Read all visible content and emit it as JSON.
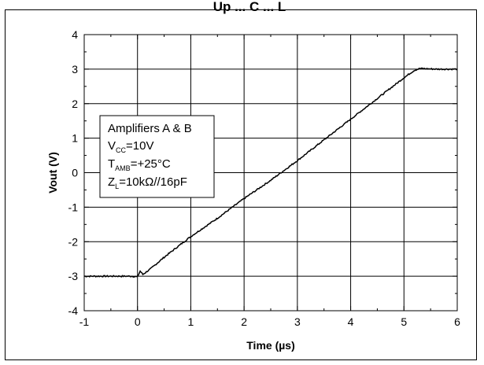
{
  "title_partial": "Up ... C ... L",
  "chart_data": {
    "type": "line",
    "xlabel": "Time (µs)",
    "ylabel": "Vout (V)",
    "xlim": [
      -1,
      6
    ],
    "ylim": [
      -4,
      4
    ],
    "xticks": [
      -1,
      0,
      1,
      2,
      3,
      4,
      5,
      6
    ],
    "yticks": [
      -4,
      -3,
      -2,
      -1,
      0,
      1,
      2,
      3,
      4
    ],
    "grid": true,
    "series": [
      {
        "points": [
          [
            -1.0,
            -3.0
          ],
          [
            -0.5,
            -3.0
          ],
          [
            -0.1,
            -3.0
          ],
          [
            0.0,
            -3.02
          ],
          [
            0.05,
            -2.85
          ],
          [
            0.1,
            -2.95
          ],
          [
            0.25,
            -2.78
          ],
          [
            0.5,
            -2.45
          ],
          [
            1.0,
            -1.85
          ],
          [
            1.5,
            -1.32
          ],
          [
            2.0,
            -0.75
          ],
          [
            2.5,
            -0.22
          ],
          [
            3.0,
            0.35
          ],
          [
            3.5,
            0.95
          ],
          [
            4.0,
            1.55
          ],
          [
            4.5,
            2.15
          ],
          [
            5.0,
            2.75
          ],
          [
            5.2,
            2.97
          ],
          [
            5.3,
            3.02
          ],
          [
            5.6,
            3.0
          ],
          [
            6.0,
            3.0
          ]
        ]
      }
    ],
    "annotation": {
      "line1": "Amplifiers A & B",
      "vcc_main": "V",
      "vcc_sub": "CC",
      "vcc_value": "=10V",
      "tamb_main": "T",
      "tamb_sub": "AMB",
      "tamb_value": "=+25°C",
      "zl_main": "Z",
      "zl_sub": "L",
      "zl_value": "=10kΩ//16pF"
    }
  }
}
